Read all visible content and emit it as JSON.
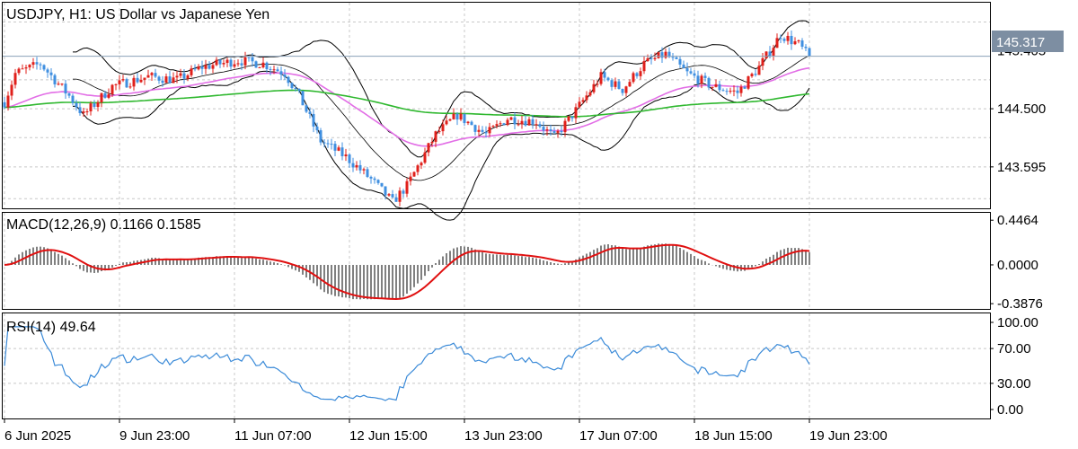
{
  "header": {
    "symbol": "USDJPY, H1:  US Dollar vs Japanese Yen"
  },
  "colors": {
    "bull": "#e0201b",
    "bear": "#3f8fe0",
    "bb": "#000000",
    "ma_fast": "#e26ee6",
    "ma_slow": "#2fb82f",
    "macd_signal": "#e01010",
    "rsi": "#3a8ad8",
    "grid": "#c8c8c8",
    "current_line": "#8aa0b8",
    "tag_bg": "#7d8ea2"
  },
  "chart_data": [
    {
      "type": "candlestick",
      "title": "USDJPY, H1:  US Dollar vs Japanese Yen",
      "x_ticks": [
        "6 Jun 2025",
        "9 Jun 23:00",
        "11 Jun 07:00",
        "12 Jun 15:00",
        "13 Jun 23:00",
        "17 Jun 07:00",
        "18 Jun 15:00",
        "19 Jun 23:00"
      ],
      "y_ticks": [
        "143.595",
        "144.500"
      ],
      "partial_tick": "145.405",
      "current_price": "145.317",
      "ylim": [
        142.95,
        146.15
      ],
      "bar_count": 225,
      "indicators": [
        "Bollinger Bands",
        "Moving Average (fast)",
        "Moving Average (slow)"
      ],
      "trend_anchors": [
        [
          0,
          144.6
        ],
        [
          3,
          145.05
        ],
        [
          10,
          145.2
        ],
        [
          18,
          144.7
        ],
        [
          22,
          144.4
        ],
        [
          30,
          144.85
        ],
        [
          40,
          145.0
        ],
        [
          48,
          144.95
        ],
        [
          55,
          145.15
        ],
        [
          65,
          145.25
        ],
        [
          72,
          145.2
        ],
        [
          78,
          145.05
        ],
        [
          82,
          144.7
        ],
        [
          88,
          144.0
        ],
        [
          95,
          143.75
        ],
        [
          102,
          143.4
        ],
        [
          108,
          143.05
        ],
        [
          112,
          143.3
        ],
        [
          116,
          143.7
        ],
        [
          120,
          144.1
        ],
        [
          126,
          144.4
        ],
        [
          134,
          144.1
        ],
        [
          140,
          144.35
        ],
        [
          148,
          144.3
        ],
        [
          153,
          144.05
        ],
        [
          158,
          144.4
        ],
        [
          166,
          145.0
        ],
        [
          172,
          144.8
        ],
        [
          178,
          145.2
        ],
        [
          184,
          145.35
        ],
        [
          190,
          145.05
        ],
        [
          197,
          144.85
        ],
        [
          204,
          144.75
        ],
        [
          210,
          145.15
        ],
        [
          216,
          145.65
        ],
        [
          221,
          145.5
        ],
        [
          224,
          145.3
        ]
      ]
    },
    {
      "type": "histogram+line",
      "title": "MACD(12,26,9) 0.1166 0.1585",
      "y_ticks": [
        "0.4464",
        "0.0000",
        "-0.3876"
      ],
      "ylim": [
        -0.44,
        0.52
      ]
    },
    {
      "type": "line",
      "title": "RSI(14) 49.64",
      "y_ticks": [
        "100.00",
        "70.00",
        "30.00",
        "0.00"
      ],
      "ylim": [
        0,
        100
      ],
      "levels": [
        70,
        30
      ]
    }
  ]
}
